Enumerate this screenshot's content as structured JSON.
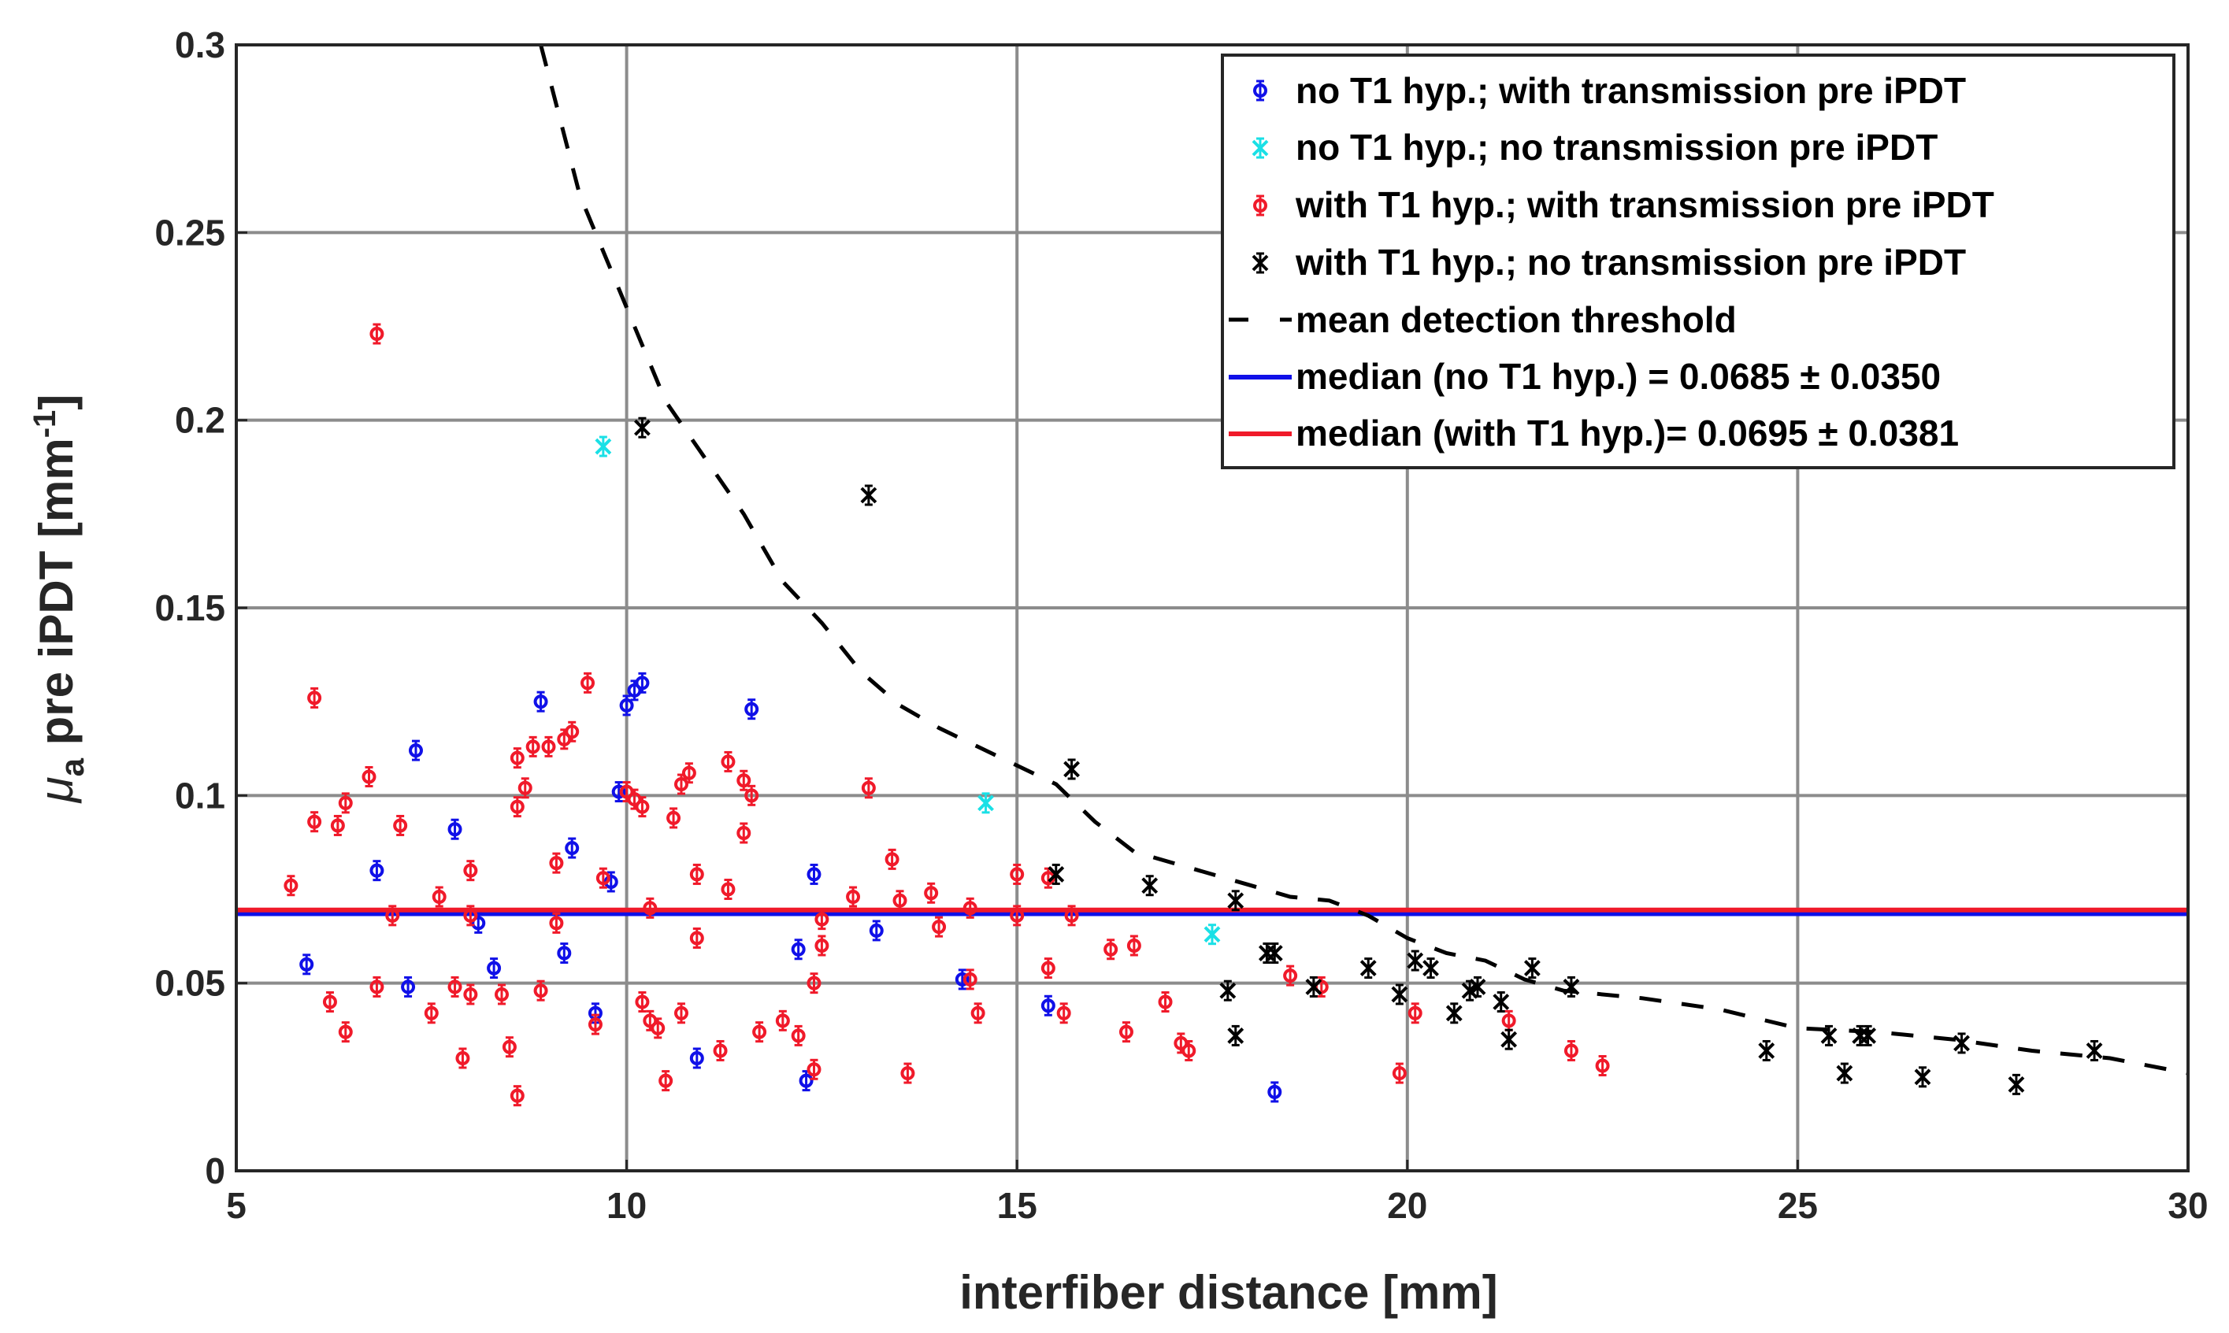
{
  "chart_data": {
    "type": "scatter",
    "xlabel": "interfiber distance [mm]",
    "ylabel": {
      "mu": "μ",
      "sub": "a",
      "mid": " pre iPDT [mm",
      "sup": "-1",
      "end": "]"
    },
    "xlim": [
      5,
      30
    ],
    "ylim": [
      0,
      0.3
    ],
    "xticks": [
      "5",
      "10",
      "15",
      "20",
      "25",
      "30"
    ],
    "yticks": [
      "0",
      "0.05",
      "0.1",
      "0.15",
      "0.2",
      "0.25",
      "0.3"
    ],
    "grid": true,
    "legend_position": "top-right",
    "legend": [
      "no T1 hyp.; with transmission pre iPDT",
      "no T1 hyp.; no transmission pre iPDT",
      "with T1 hyp.; with transmission pre iPDT",
      "with T1 hyp.; no transmission pre iPDT",
      "mean detection threshold",
      "median (no T1 hyp.) = 0.0685 ± 0.0350",
      "median (with T1 hyp.)= 0.0695 ± 0.0381"
    ],
    "colors": {
      "blue": "#1010e8",
      "cyan": "#1ae0e6",
      "red": "#f01a2a",
      "black": "#000000",
      "grid": "#8c8c8c",
      "median_no_t1": "#1010e8",
      "median_with_t1": "#f01a2a"
    },
    "series": [
      {
        "name": "no T1 hyp.; with transmission pre iPDT",
        "marker": "circle",
        "color": "blue",
        "points": [
          [
            5.9,
            0.055
          ],
          [
            6.8,
            0.08
          ],
          [
            7.2,
            0.049
          ],
          [
            7.3,
            0.112
          ],
          [
            7.8,
            0.091
          ],
          [
            8.1,
            0.066
          ],
          [
            8.3,
            0.054
          ],
          [
            8.9,
            0.125
          ],
          [
            9.2,
            0.058
          ],
          [
            9.3,
            0.086
          ],
          [
            9.6,
            0.042
          ],
          [
            9.8,
            0.077
          ],
          [
            9.9,
            0.101
          ],
          [
            10.0,
            0.124
          ],
          [
            10.1,
            0.128
          ],
          [
            10.2,
            0.13
          ],
          [
            10.9,
            0.03
          ],
          [
            11.6,
            0.123
          ],
          [
            12.2,
            0.059
          ],
          [
            12.3,
            0.024
          ],
          [
            12.4,
            0.079
          ],
          [
            13.2,
            0.064
          ],
          [
            14.3,
            0.051
          ],
          [
            15.4,
            0.044
          ],
          [
            18.3,
            0.021
          ]
        ]
      },
      {
        "name": "no T1 hyp.; no transmission pre iPDT",
        "marker": "x",
        "color": "cyan",
        "points": [
          [
            9.7,
            0.193
          ],
          [
            14.6,
            0.098
          ],
          [
            17.5,
            0.063
          ]
        ]
      },
      {
        "name": "with T1 hyp.; with transmission pre iPDT",
        "marker": "circle",
        "color": "red",
        "points": [
          [
            5.7,
            0.076
          ],
          [
            6.0,
            0.126
          ],
          [
            6.0,
            0.093
          ],
          [
            6.2,
            0.045
          ],
          [
            6.3,
            0.092
          ],
          [
            6.4,
            0.037
          ],
          [
            6.4,
            0.098
          ],
          [
            6.7,
            0.105
          ],
          [
            6.8,
            0.223
          ],
          [
            6.8,
            0.049
          ],
          [
            7.0,
            0.068
          ],
          [
            7.1,
            0.092
          ],
          [
            7.5,
            0.042
          ],
          [
            7.6,
            0.073
          ],
          [
            7.8,
            0.049
          ],
          [
            7.9,
            0.03
          ],
          [
            8.0,
            0.08
          ],
          [
            8.0,
            0.068
          ],
          [
            8.0,
            0.047
          ],
          [
            8.4,
            0.047
          ],
          [
            8.5,
            0.033
          ],
          [
            8.6,
            0.02
          ],
          [
            8.6,
            0.11
          ],
          [
            8.6,
            0.097
          ],
          [
            8.7,
            0.102
          ],
          [
            8.8,
            0.113
          ],
          [
            8.9,
            0.048
          ],
          [
            9.0,
            0.113
          ],
          [
            9.1,
            0.082
          ],
          [
            9.1,
            0.066
          ],
          [
            9.2,
            0.115
          ],
          [
            9.3,
            0.117
          ],
          [
            9.5,
            0.13
          ],
          [
            9.6,
            0.039
          ],
          [
            9.7,
            0.078
          ],
          [
            10.0,
            0.101
          ],
          [
            10.1,
            0.099
          ],
          [
            10.2,
            0.045
          ],
          [
            10.2,
            0.097
          ],
          [
            10.3,
            0.04
          ],
          [
            10.3,
            0.07
          ],
          [
            10.4,
            0.038
          ],
          [
            10.5,
            0.024
          ],
          [
            10.6,
            0.094
          ],
          [
            10.7,
            0.103
          ],
          [
            10.7,
            0.042
          ],
          [
            10.8,
            0.106
          ],
          [
            10.9,
            0.062
          ],
          [
            10.9,
            0.079
          ],
          [
            11.2,
            0.032
          ],
          [
            11.3,
            0.075
          ],
          [
            11.3,
            0.109
          ],
          [
            11.5,
            0.104
          ],
          [
            11.5,
            0.09
          ],
          [
            11.6,
            0.1
          ],
          [
            11.7,
            0.037
          ],
          [
            12.0,
            0.04
          ],
          [
            12.2,
            0.036
          ],
          [
            12.4,
            0.05
          ],
          [
            12.4,
            0.027
          ],
          [
            12.5,
            0.067
          ],
          [
            12.5,
            0.06
          ],
          [
            12.9,
            0.073
          ],
          [
            13.1,
            0.102
          ],
          [
            13.4,
            0.083
          ],
          [
            13.5,
            0.072
          ],
          [
            13.6,
            0.026
          ],
          [
            13.9,
            0.074
          ],
          [
            14.0,
            0.065
          ],
          [
            14.4,
            0.07
          ],
          [
            14.4,
            0.051
          ],
          [
            14.5,
            0.042
          ],
          [
            15.0,
            0.079
          ],
          [
            15.0,
            0.068
          ],
          [
            15.4,
            0.078
          ],
          [
            15.4,
            0.054
          ],
          [
            15.6,
            0.042
          ],
          [
            15.7,
            0.068
          ],
          [
            16.2,
            0.059
          ],
          [
            16.4,
            0.037
          ],
          [
            16.5,
            0.06
          ],
          [
            16.9,
            0.045
          ],
          [
            17.1,
            0.034
          ],
          [
            17.2,
            0.032
          ],
          [
            18.5,
            0.052
          ],
          [
            18.9,
            0.049
          ],
          [
            19.9,
            0.026
          ],
          [
            20.1,
            0.042
          ],
          [
            21.3,
            0.04
          ],
          [
            22.1,
            0.032
          ],
          [
            22.5,
            0.028
          ]
        ]
      },
      {
        "name": "with T1 hyp.; no transmission pre iPDT",
        "marker": "x",
        "color": "black",
        "points": [
          [
            10.2,
            0.198
          ],
          [
            13.1,
            0.18
          ],
          [
            15.5,
            0.079
          ],
          [
            15.7,
            0.107
          ],
          [
            16.7,
            0.076
          ],
          [
            17.7,
            0.048
          ],
          [
            17.8,
            0.036
          ],
          [
            17.8,
            0.072
          ],
          [
            18.2,
            0.058
          ],
          [
            18.3,
            0.058
          ],
          [
            18.8,
            0.049
          ],
          [
            19.5,
            0.054
          ],
          [
            19.9,
            0.047
          ],
          [
            20.1,
            0.056
          ],
          [
            20.3,
            0.054
          ],
          [
            20.6,
            0.042
          ],
          [
            20.8,
            0.048
          ],
          [
            20.9,
            0.049
          ],
          [
            21.2,
            0.045
          ],
          [
            21.3,
            0.035
          ],
          [
            21.6,
            0.054
          ],
          [
            22.1,
            0.049
          ],
          [
            24.6,
            0.032
          ],
          [
            25.4,
            0.036
          ],
          [
            25.6,
            0.026
          ],
          [
            25.8,
            0.036
          ],
          [
            25.9,
            0.036
          ],
          [
            26.6,
            0.025
          ],
          [
            27.1,
            0.034
          ],
          [
            27.8,
            0.023
          ],
          [
            28.8,
            0.032
          ]
        ]
      }
    ],
    "threshold_curve": {
      "name": "mean detection threshold",
      "style": "dashed",
      "color": "black",
      "points": [
        [
          8.9,
          0.3
        ],
        [
          9.4,
          0.26
        ],
        [
          10.0,
          0.23
        ],
        [
          10.5,
          0.205
        ],
        [
          11.0,
          0.19
        ],
        [
          11.5,
          0.175
        ],
        [
          12.0,
          0.157
        ],
        [
          12.5,
          0.146
        ],
        [
          13.0,
          0.133
        ],
        [
          13.5,
          0.124
        ],
        [
          14.0,
          0.118
        ],
        [
          14.5,
          0.113
        ],
        [
          15.0,
          0.108
        ],
        [
          15.5,
          0.103
        ],
        [
          16.0,
          0.093
        ],
        [
          16.5,
          0.085
        ],
        [
          17.0,
          0.082
        ],
        [
          17.5,
          0.079
        ],
        [
          18.0,
          0.076
        ],
        [
          18.5,
          0.073
        ],
        [
          19.0,
          0.072
        ],
        [
          19.5,
          0.068
        ],
        [
          20.0,
          0.062
        ],
        [
          20.5,
          0.058
        ],
        [
          21.0,
          0.056
        ],
        [
          21.5,
          0.051
        ],
        [
          22.0,
          0.048
        ],
        [
          23.0,
          0.046
        ],
        [
          24.0,
          0.043
        ],
        [
          25.0,
          0.038
        ],
        [
          26.0,
          0.037
        ],
        [
          27.0,
          0.035
        ],
        [
          28.0,
          0.032
        ],
        [
          29.0,
          0.03
        ],
        [
          30.0,
          0.026
        ]
      ]
    },
    "medians": [
      {
        "name": "median (no T1 hyp.) = 0.0685 ± 0.0350",
        "value": 0.0685,
        "color": "blue"
      },
      {
        "name": "median (with T1 hyp.)= 0.0695 ± 0.0381",
        "value": 0.0695,
        "color": "red"
      }
    ]
  }
}
